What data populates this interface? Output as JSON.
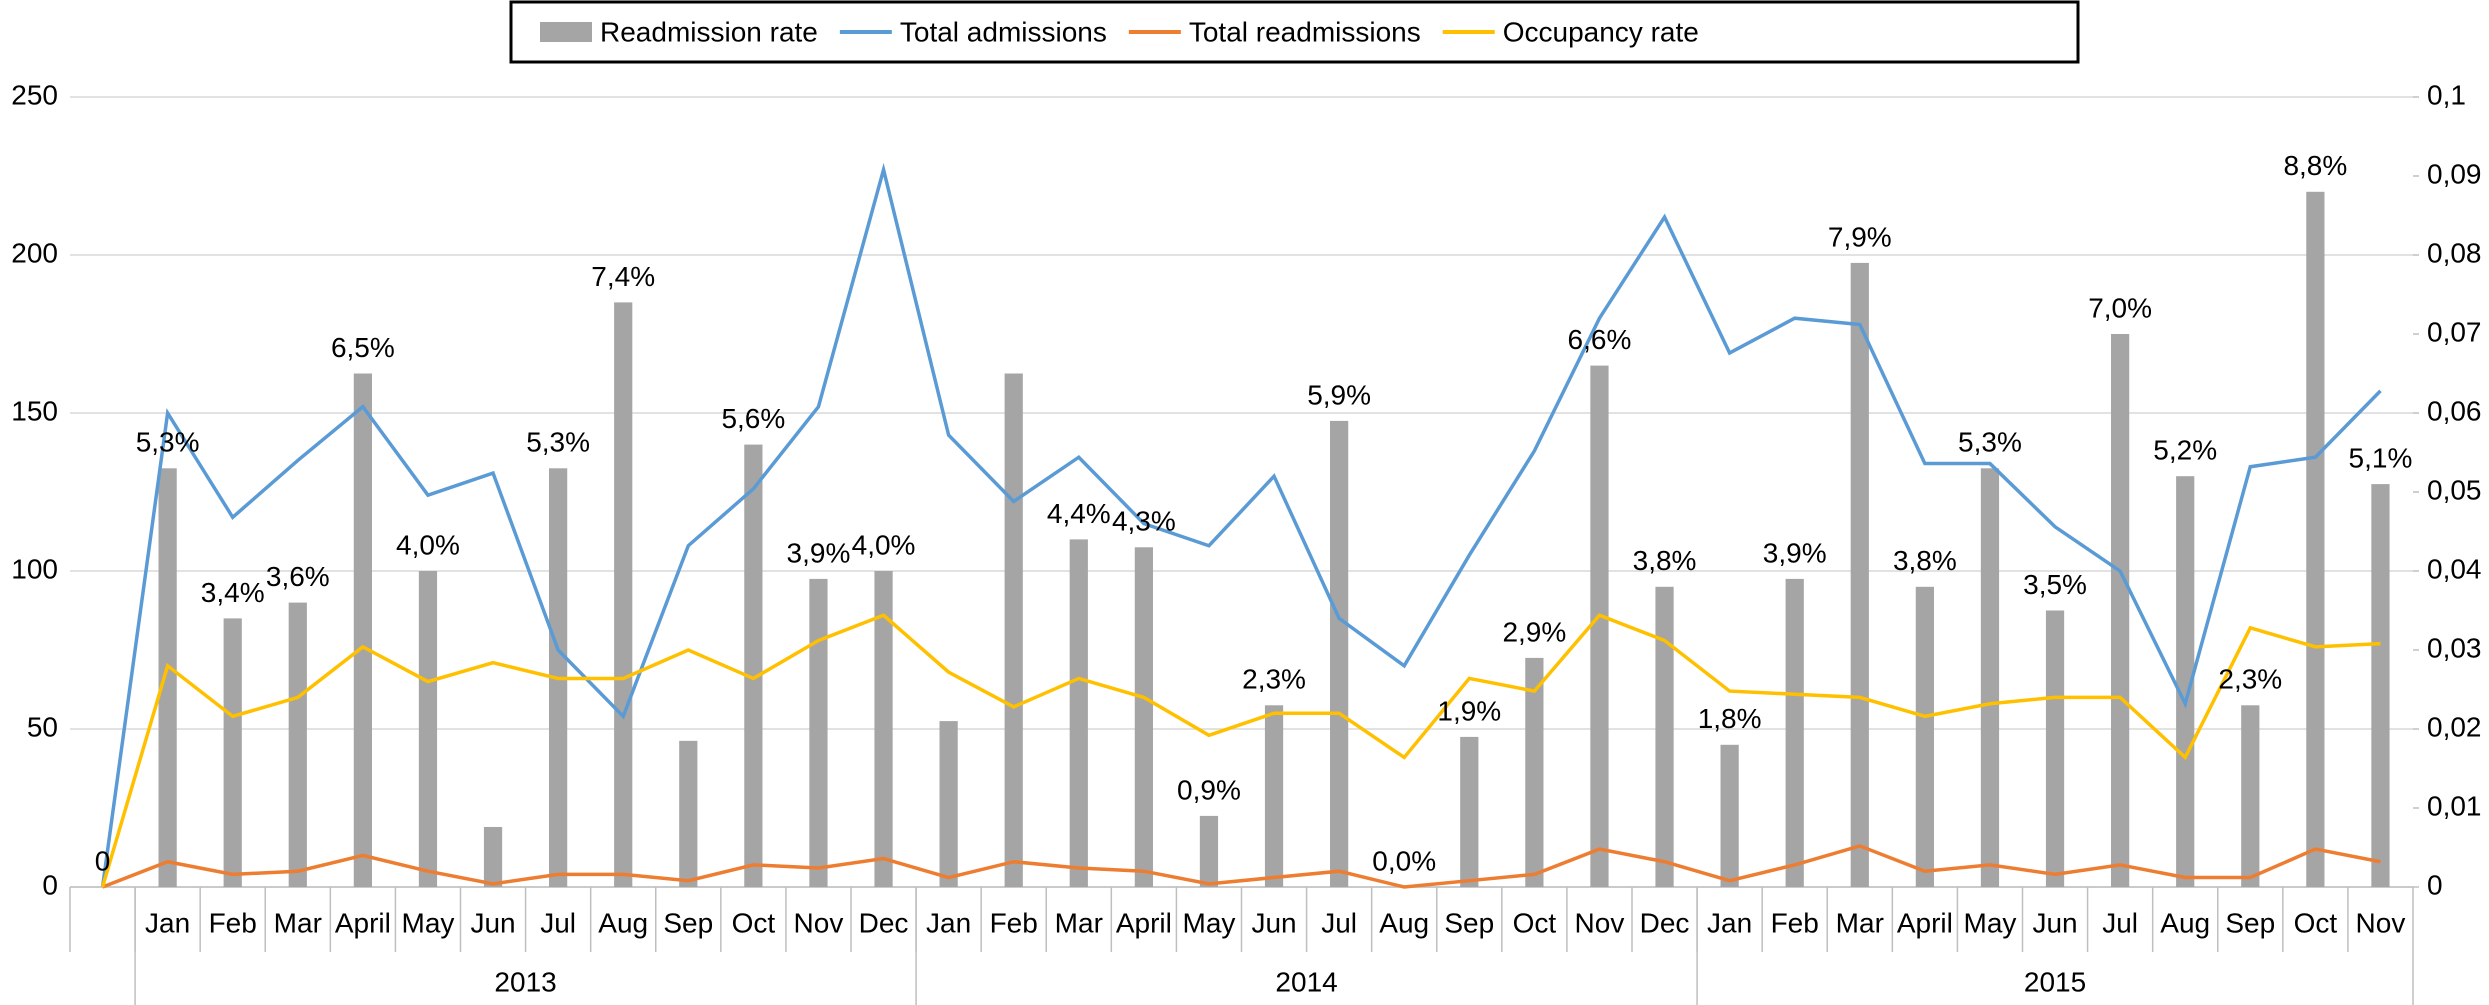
{
  "chart_data": {
    "type": "bar",
    "categories": [
      null,
      "Jan",
      "Feb",
      "Mar",
      "April",
      "May",
      "Jun",
      "Jul",
      "Aug",
      "Sep",
      "Oct",
      "Nov",
      "Dec",
      "Jan",
      "Feb",
      "Mar",
      "April",
      "May",
      "Jun",
      "Jul",
      "Aug",
      "Sep",
      "Oct",
      "Nov",
      "Dec",
      "Jan",
      "Feb",
      "Mar",
      "April",
      "May",
      "Jun",
      "Jul",
      "Aug",
      "Sep",
      "Oct",
      "Nov"
    ],
    "groups": [
      {
        "name": "2013",
        "size": 12
      },
      {
        "name": "2014",
        "size": 12
      },
      {
        "name": "2015",
        "size": 11
      }
    ],
    "series": [
      {
        "name": "Readmission rate",
        "type": "bar",
        "axis": "y2",
        "color": "#a5a5a5",
        "values": [
          0,
          0.053,
          0.034,
          0.036,
          0.065,
          0.04,
          0.0076,
          0.053,
          0.074,
          0.0185,
          0.056,
          0.039,
          0.04,
          0.021,
          0.065,
          0.044,
          0.043,
          0.009,
          0.023,
          0.059,
          0,
          0.019,
          0.029,
          0.066,
          0.038,
          0.018,
          0.039,
          0.079,
          0.038,
          0.053,
          0.035,
          0.07,
          0.052,
          0.023,
          0.088,
          0.051
        ],
        "value_labels": [
          "0",
          "5,3%",
          "3,4%",
          "3,6%",
          "6,5%",
          "4,0%",
          null,
          "5,3%",
          "7,4%",
          null,
          "5,6%",
          "3,9%",
          "4,0%",
          null,
          null,
          "4,4%",
          "4,3%",
          "0,9%",
          "2,3%",
          "5,9%",
          "0,0%",
          "1,9%",
          "2,9%",
          "6,6%",
          "3,8%",
          "1,8%",
          "3,9%",
          "7,9%",
          "3,8%",
          "5,3%",
          "3,5%",
          "7,0%",
          "5,2%",
          "2,3%",
          "8,8%",
          "5,1%"
        ]
      },
      {
        "name": "Total admissions",
        "type": "line",
        "color": "#5b9bd5",
        "values": [
          0,
          150,
          117,
          135,
          152,
          124,
          131,
          75,
          54,
          108,
          126,
          152,
          227,
          143,
          122,
          136,
          115,
          108,
          130,
          85,
          70,
          105,
          138,
          180,
          212,
          169,
          180,
          178,
          134,
          134,
          114,
          100,
          58,
          133,
          136,
          157
        ]
      },
      {
        "name": "Total readmissions",
        "type": "line",
        "color": "#ed7d31",
        "values": [
          0,
          8,
          4,
          5,
          10,
          5,
          1,
          4,
          4,
          2,
          7,
          6,
          9,
          3,
          8,
          6,
          5,
          1,
          3,
          5,
          0,
          2,
          4,
          12,
          8,
          2,
          7,
          13,
          5,
          7,
          4,
          7,
          3,
          3,
          12,
          8
        ]
      },
      {
        "name": "Occupancy rate",
        "type": "line",
        "color": "#ffc000",
        "values": [
          0,
          70,
          54,
          60,
          76,
          65,
          71,
          66,
          66,
          75,
          66,
          78,
          86,
          68,
          57,
          66,
          60,
          48,
          55,
          55,
          41,
          66,
          62,
          86,
          78,
          62,
          61,
          60,
          54,
          58,
          60,
          60,
          41,
          82,
          76,
          77
        ]
      }
    ],
    "ylim": [
      0,
      250
    ],
    "yticks": [
      0,
      50,
      100,
      150,
      200,
      250
    ],
    "y2lim": [
      0,
      0.1
    ],
    "y2ticks": [
      {
        "value": 0,
        "label": "0"
      },
      {
        "value": 0.01,
        "label": "0,01"
      },
      {
        "value": 0.02,
        "label": "0,02"
      },
      {
        "value": 0.03,
        "label": "0,03"
      },
      {
        "value": 0.04,
        "label": "0,04"
      },
      {
        "value": 0.05,
        "label": "0,05"
      },
      {
        "value": 0.06,
        "label": "0,06"
      },
      {
        "value": 0.07,
        "label": "0,07"
      },
      {
        "value": 0.08,
        "label": "0,08"
      },
      {
        "value": 0.09,
        "label": "0,09"
      },
      {
        "value": 0.1,
        "label": "0,1"
      }
    ],
    "grid": true,
    "legend": "top"
  }
}
